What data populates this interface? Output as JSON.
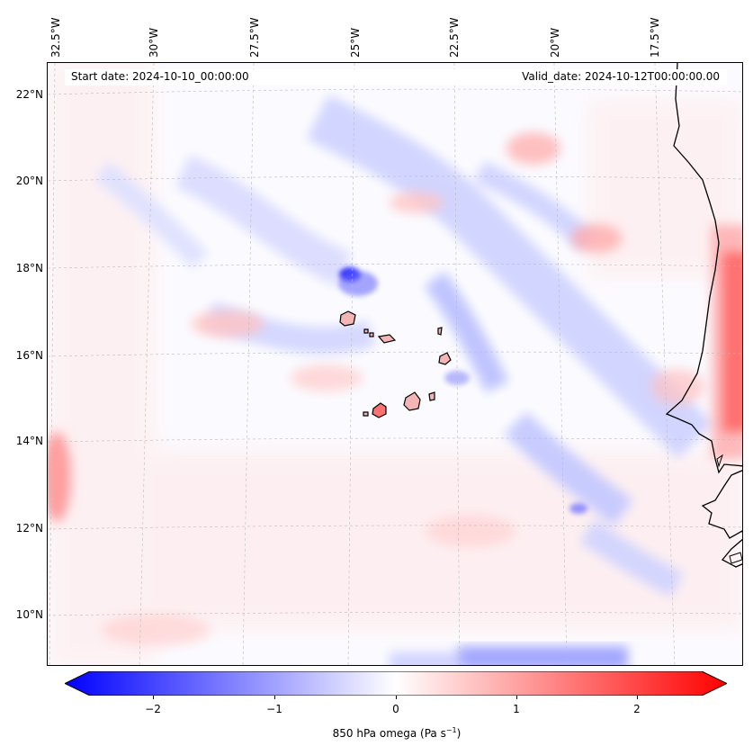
{
  "map": {
    "start_date": "Start date: 2024-10-10_00:00:00",
    "valid_date": "Valid_date: 2024-10-12T00:00:00.00",
    "longitude_labels": [
      "32.5°W",
      "30°W",
      "27.5°W",
      "25°W",
      "22.5°W",
      "20°W",
      "17.5°W"
    ],
    "latitude_labels": [
      "22°N",
      "20°N",
      "18°N",
      "16°N",
      "14°N",
      "12°N",
      "10°N"
    ],
    "field": "850 hPa omega",
    "colormap": "bwr",
    "colors": {
      "negative": "#0000ff",
      "zero": "#ffffff",
      "positive": "#ff0000",
      "coastline": "#000000",
      "land_islands": "#f4b5b5"
    }
  },
  "colorbar": {
    "ticks": [
      "−2",
      "−1",
      "0",
      "1",
      "2"
    ],
    "range": [
      -2.6,
      2.6
    ],
    "label_main": "850 hPa omega (Pa s",
    "label_sup": "−1",
    "label_end": ")"
  }
}
